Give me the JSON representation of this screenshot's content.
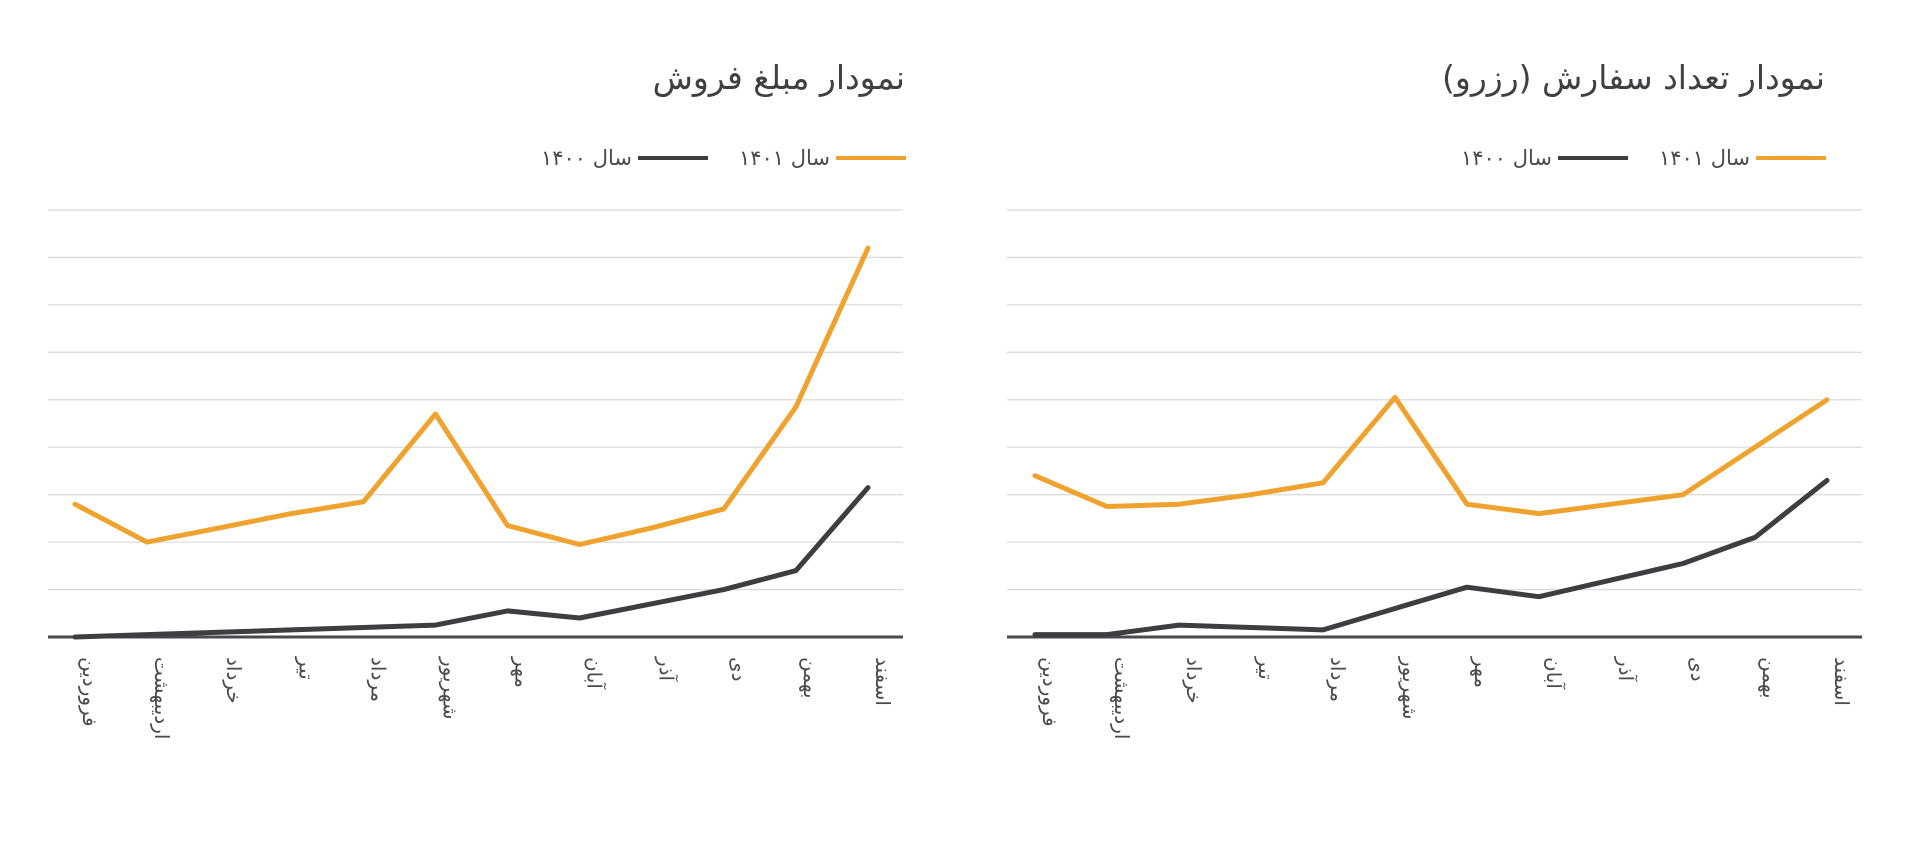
{
  "colors": {
    "series_1401": "#F0A22E",
    "series_1400": "#3D3D42",
    "grid": "#dcdcdc",
    "axis": "#4a4a4f"
  },
  "chart_data": [
    {
      "type": "line",
      "title": "نمودار مبلغ فروش",
      "xlabel": "",
      "ylabel": "",
      "ylim": [
        0,
        9
      ],
      "grid": true,
      "legend": "top-right",
      "categories": [
        "فروردین",
        "اردیبهشت",
        "خرداد",
        "تیر",
        "مرداد",
        "شهریور",
        "مهر",
        "آبان",
        "آذر",
        "دی",
        "بهمن",
        "اسفند"
      ],
      "series": [
        {
          "name": "سال ۱۴۰۱",
          "color": "#F0A22E",
          "values": [
            2.8,
            2.0,
            2.3,
            2.6,
            2.85,
            4.7,
            2.35,
            1.95,
            2.3,
            2.7,
            4.85,
            8.2
          ]
        },
        {
          "name": "سال ۱۴۰۰",
          "color": "#3D3D42",
          "values": [
            0.0,
            0.05,
            0.1,
            0.15,
            0.2,
            0.25,
            0.55,
            0.4,
            0.7,
            1.0,
            1.4,
            3.15
          ]
        }
      ]
    },
    {
      "type": "line",
      "title": "نمودار تعداد سفارش (رزرو)",
      "xlabel": "",
      "ylabel": "",
      "ylim": [
        0,
        9
      ],
      "grid": true,
      "legend": "top-right",
      "categories": [
        "فروردین",
        "اردیبهشت",
        "خرداد",
        "تیر",
        "مرداد",
        "شهریور",
        "مهر",
        "آبان",
        "آذر",
        "دی",
        "بهمن",
        "اسفند"
      ],
      "series": [
        {
          "name": "سال ۱۴۰۱",
          "color": "#F0A22E",
          "values": [
            3.4,
            2.75,
            2.8,
            3.0,
            3.25,
            5.05,
            2.8,
            2.6,
            2.8,
            3.0,
            4.0,
            5.0
          ]
        },
        {
          "name": "سال ۱۴۰۰",
          "color": "#3D3D42",
          "values": [
            0.05,
            0.05,
            0.25,
            0.2,
            0.15,
            0.6,
            1.05,
            0.85,
            1.2,
            1.55,
            2.1,
            3.3
          ]
        }
      ]
    }
  ]
}
